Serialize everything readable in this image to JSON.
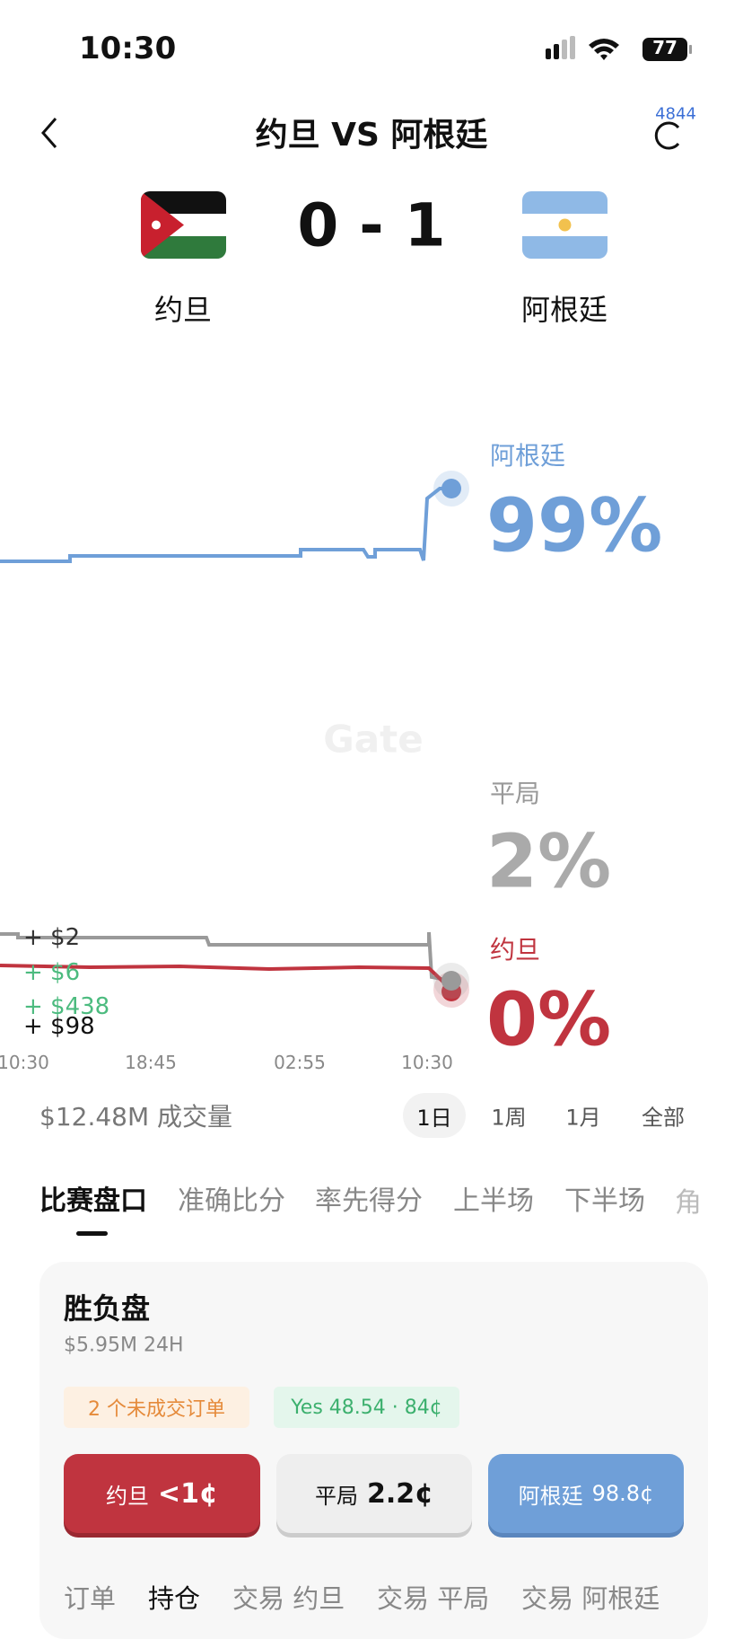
{
  "status_bar": {
    "time": "10:30",
    "battery": "77"
  },
  "header": {
    "title": "约旦 VS 阿根廷",
    "badge": "4844"
  },
  "match": {
    "home": "约旦",
    "away": "阿根廷",
    "score": "0 - 1"
  },
  "chart": {
    "outcomes": [
      {
        "label": "阿根廷",
        "percent": "99%"
      },
      {
        "label": "平局",
        "percent": "2%"
      },
      {
        "label": "约旦",
        "percent": "0%"
      }
    ],
    "trades": [
      "+ $2",
      "+ $6",
      "+ $438",
      "+ $98"
    ],
    "x_labels": [
      "10:30",
      "18:45",
      "02:55",
      "10:30"
    ],
    "watermark": "Gate"
  },
  "volume": "$12.48M 成交量",
  "ranges": [
    "1日",
    "1周",
    "1月",
    "全部"
  ],
  "tabs": [
    "比赛盘口",
    "准确比分",
    "率先得分",
    "上半场",
    "下半场",
    "角"
  ],
  "card": {
    "title": "胜负盘",
    "subtitle": "$5.95M 24H",
    "chips": [
      "2 个未成交订单",
      "Yes 48.54 · 84¢"
    ],
    "buttons": [
      {
        "label": "约旦",
        "price": "<1¢"
      },
      {
        "label": "平局",
        "price": "2.2¢"
      },
      {
        "label": "阿根廷",
        "price": "98.8¢"
      }
    ]
  },
  "bottom_tabs": [
    "订单",
    "持仓",
    "交易 约旦",
    "交易 平局",
    "交易 阿根廷"
  ]
}
